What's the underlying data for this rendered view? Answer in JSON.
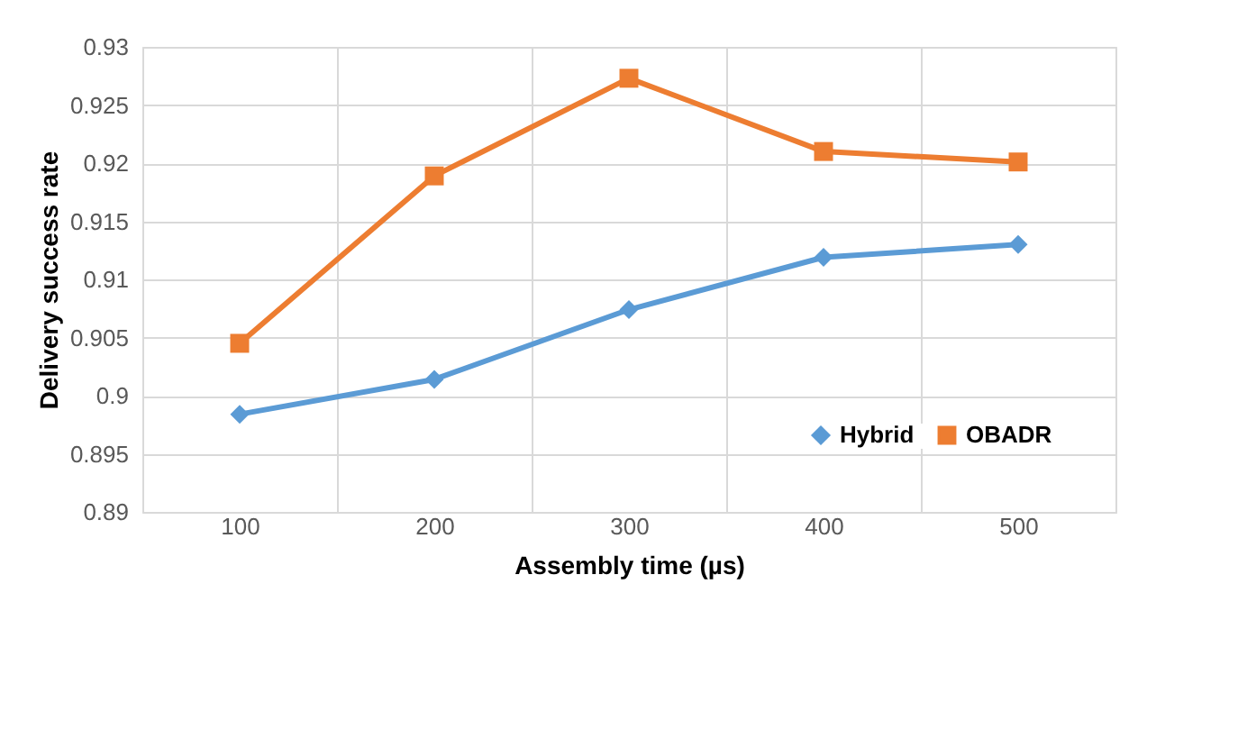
{
  "chart_data": {
    "type": "line",
    "xlabel": "Assembly time (µs)",
    "ylabel": "Delivery success rate",
    "categories": [
      "100",
      "200",
      "300",
      "400",
      "500"
    ],
    "series": [
      {
        "name": "Hybrid",
        "color": "#5b9bd5",
        "marker": "diamond",
        "values": [
          0.8984,
          0.9014,
          0.9074,
          0.9119,
          0.913
        ]
      },
      {
        "name": "OBADR",
        "color": "#ed7d31",
        "marker": "square",
        "values": [
          0.9045,
          0.9189,
          0.9273,
          0.921,
          0.9201
        ]
      }
    ],
    "ylim": [
      0.89,
      0.93
    ],
    "yticks": [
      0.89,
      0.895,
      0.9,
      0.905,
      0.91,
      0.915,
      0.92,
      0.925,
      0.93
    ],
    "grid": true,
    "legend": "bottom right",
    "line_style": "solid"
  }
}
